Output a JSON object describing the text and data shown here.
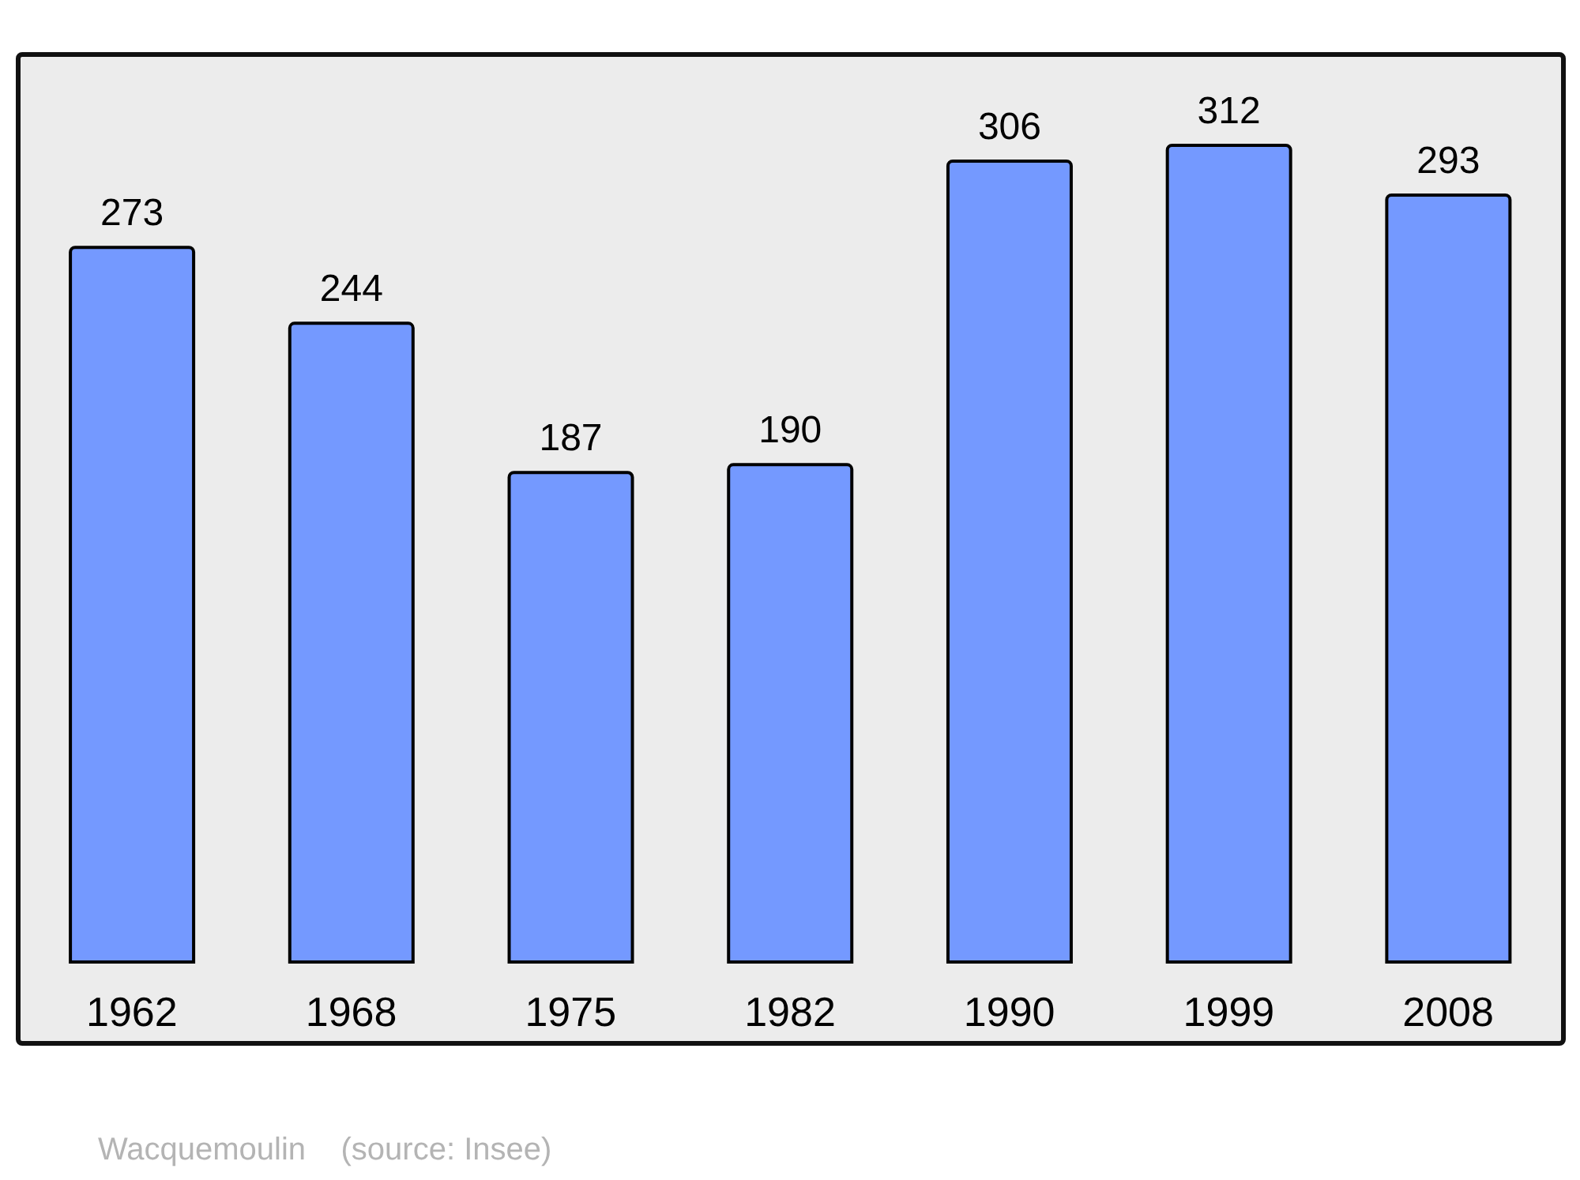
{
  "chart_data": {
    "type": "bar",
    "categories": [
      "1962",
      "1968",
      "1975",
      "1982",
      "1990",
      "1999",
      "2008"
    ],
    "values": [
      273,
      244,
      187,
      190,
      306,
      312,
      293
    ],
    "color": "#7499ff",
    "data_labels": true,
    "annotations": [
      "Wacquemoulin    (source: Insee)"
    ]
  }
}
